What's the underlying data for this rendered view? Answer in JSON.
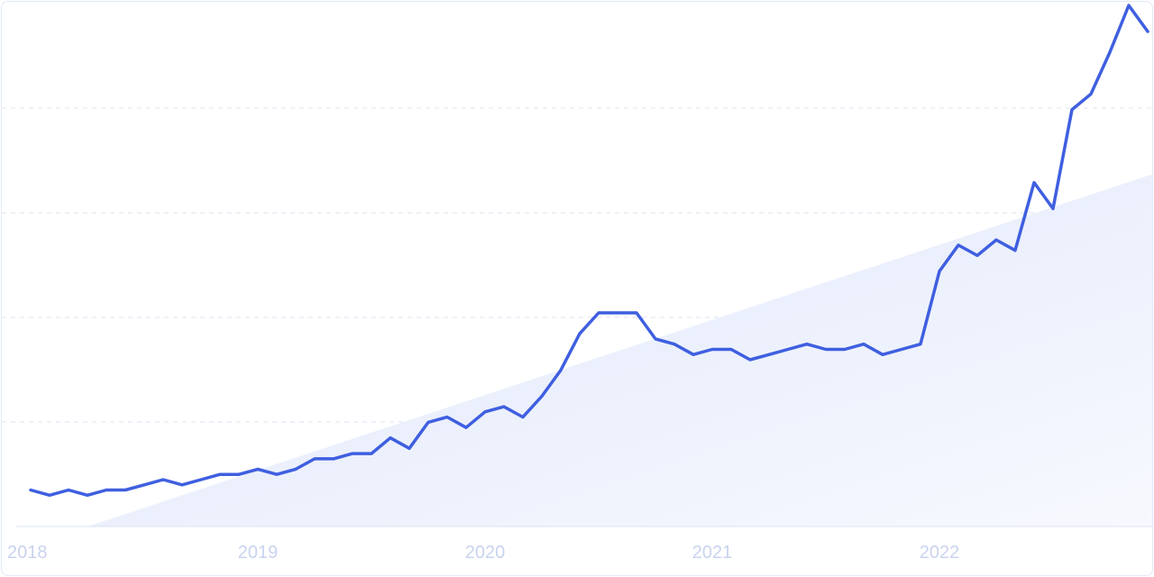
{
  "chart_data": {
    "type": "line",
    "title": "",
    "xlabel": "",
    "ylabel": "",
    "x_tick_labels": [
      "2018",
      "2019",
      "2020",
      "2021",
      "2022"
    ],
    "grid": true,
    "legend": "none",
    "trend_area": true,
    "colors": {
      "line": "#3f5fe0",
      "grid": "#dde3f3",
      "axis": "#dde3f3",
      "tick_label": "#c9d3ef",
      "trend_fill": "#e8eefb"
    },
    "ylim": [
      0,
      100
    ],
    "trend": {
      "start": [
        "2018-04",
        0
      ],
      "end": [
        "2022-12",
        67.7
      ]
    },
    "series": [
      {
        "name": "",
        "points": [
          [
            "2018-01",
            7
          ],
          [
            "2018-02",
            6
          ],
          [
            "2018-03",
            7
          ],
          [
            "2018-04",
            6
          ],
          [
            "2018-05",
            7
          ],
          [
            "2018-06",
            7
          ],
          [
            "2018-07",
            8
          ],
          [
            "2018-08",
            9
          ],
          [
            "2018-09",
            8
          ],
          [
            "2018-10",
            9
          ],
          [
            "2018-11",
            10
          ],
          [
            "2018-12",
            10
          ],
          [
            "2019-01",
            11
          ],
          [
            "2019-02",
            10
          ],
          [
            "2019-03",
            11
          ],
          [
            "2019-04",
            13
          ],
          [
            "2019-05",
            13
          ],
          [
            "2019-06",
            14
          ],
          [
            "2019-07",
            14
          ],
          [
            "2019-08",
            17
          ],
          [
            "2019-09",
            15
          ],
          [
            "2019-10",
            20
          ],
          [
            "2019-11",
            21
          ],
          [
            "2019-12",
            19
          ],
          [
            "2020-01",
            22
          ],
          [
            "2020-02",
            23
          ],
          [
            "2020-03",
            21
          ],
          [
            "2020-04",
            25
          ],
          [
            "2020-05",
            30
          ],
          [
            "2020-06",
            37
          ],
          [
            "2020-07",
            41
          ],
          [
            "2020-08",
            41
          ],
          [
            "2020-09",
            41
          ],
          [
            "2020-10",
            36
          ],
          [
            "2020-11",
            35
          ],
          [
            "2020-12",
            33
          ],
          [
            "2021-01",
            34
          ],
          [
            "2021-02",
            34
          ],
          [
            "2021-03",
            32
          ],
          [
            "2021-04",
            33
          ],
          [
            "2021-05",
            34
          ],
          [
            "2021-06",
            35
          ],
          [
            "2021-07",
            34
          ],
          [
            "2021-08",
            34
          ],
          [
            "2021-09",
            35
          ],
          [
            "2021-10",
            33
          ],
          [
            "2021-11",
            34
          ],
          [
            "2021-12",
            35
          ],
          [
            "2022-01",
            49
          ],
          [
            "2022-02",
            54
          ],
          [
            "2022-03",
            52
          ],
          [
            "2022-04",
            55
          ],
          [
            "2022-05",
            53
          ],
          [
            "2022-06",
            66
          ],
          [
            "2022-07",
            61
          ],
          [
            "2022-08",
            80
          ],
          [
            "2022-09",
            83
          ],
          [
            "2022-10",
            91
          ],
          [
            "2022-11",
            100
          ],
          [
            "2022-12",
            95
          ]
        ]
      }
    ]
  }
}
